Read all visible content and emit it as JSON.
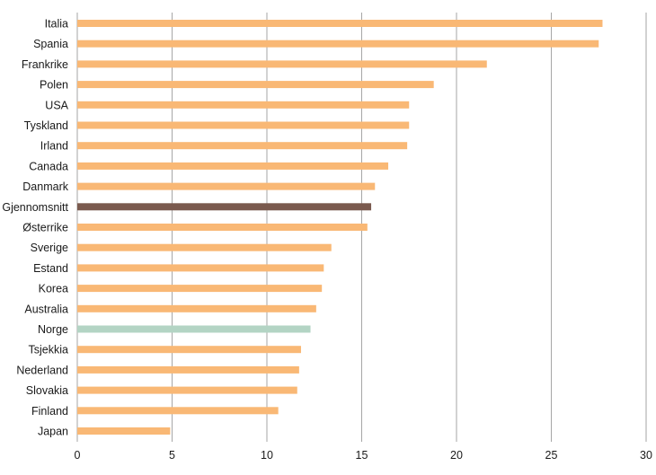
{
  "chart_data": {
    "type": "bar",
    "orientation": "horizontal",
    "categories": [
      "Italia",
      "Spania",
      "Frankrike",
      "Polen",
      "USA",
      "Tyskland",
      "Irland",
      "Canada",
      "Danmark",
      "Gjennomsnitt",
      "Østerrike",
      "Sverige",
      "Estand",
      "Korea",
      "Australia",
      "Norge",
      "Tsjekkia",
      "Nederland",
      "Slovakia",
      "Finland",
      "Japan"
    ],
    "values": [
      27.7,
      27.5,
      21.6,
      18.8,
      17.5,
      17.5,
      17.4,
      16.4,
      15.7,
      15.5,
      15.3,
      13.4,
      13.0,
      12.9,
      12.6,
      12.3,
      11.8,
      11.7,
      11.6,
      10.6,
      4.9
    ],
    "xlim": [
      0,
      30
    ],
    "xticks": [
      0,
      5,
      10,
      15,
      20,
      25,
      30
    ],
    "grid": true,
    "colors": {
      "default": "#F9B875",
      "Gjennomsnitt": "#7A5A4E",
      "Norge": "#B3D4C4"
    }
  }
}
